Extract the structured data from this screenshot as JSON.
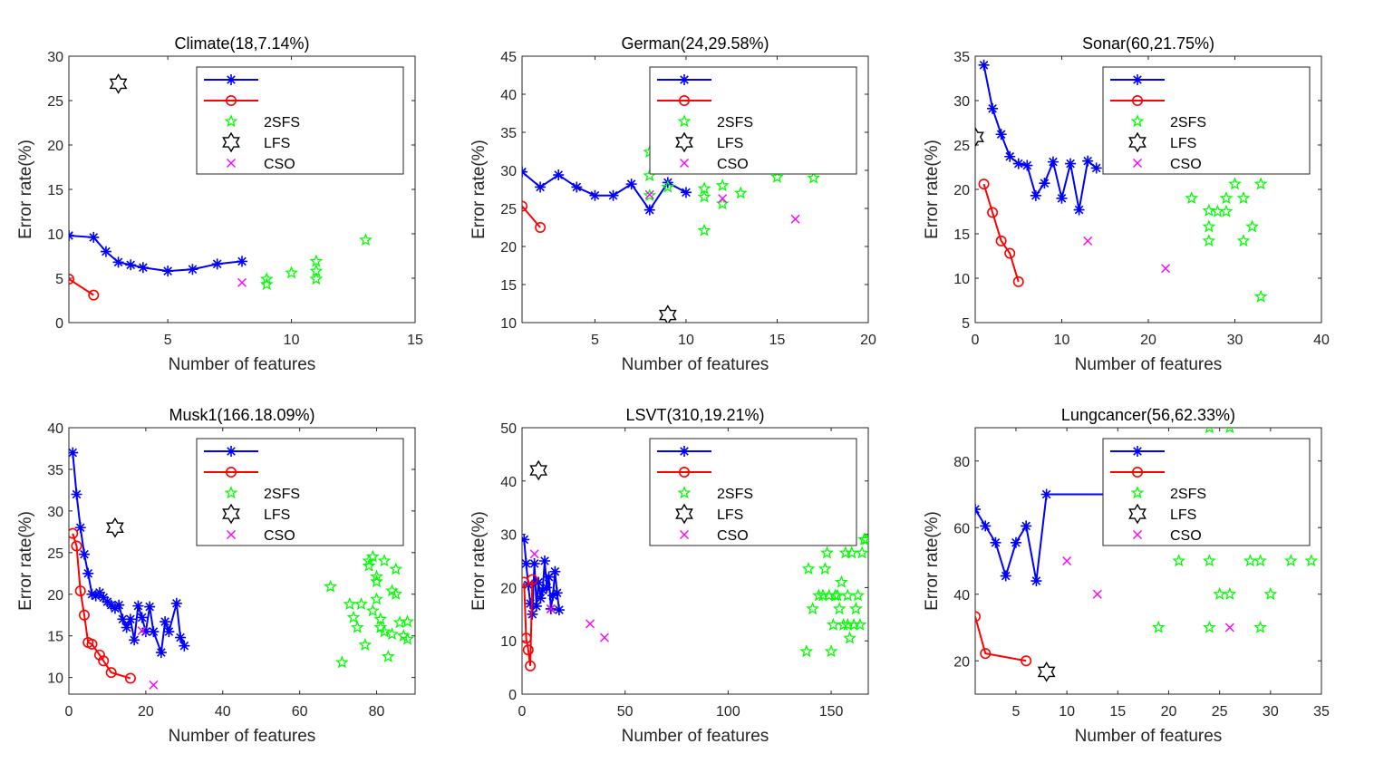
{
  "chart_data": [
    {
      "type": "scatter",
      "title": "Climate(18,7.14%)",
      "xlabel": "Number of features",
      "ylabel": "Error rate(%)",
      "xlim": [
        1,
        15
      ],
      "ylim": [
        0,
        30
      ],
      "xticks": [
        5,
        10,
        15
      ],
      "yticks": [
        0,
        5,
        10,
        15,
        20,
        25,
        30
      ],
      "grid": false,
      "legend_position": "top-right",
      "legend": [
        "",
        "",
        "2SFS",
        "LFS",
        "CSO"
      ],
      "series": [
        {
          "kind": "blue-line",
          "x": [
            1,
            2,
            2.5,
            3,
            3.5,
            4,
            5,
            6,
            7,
            8
          ],
          "y": [
            9.8,
            9.6,
            8.0,
            6.8,
            6.5,
            6.2,
            5.8,
            6.0,
            6.6,
            6.9
          ]
        },
        {
          "kind": "red-line",
          "x": [
            1,
            2
          ],
          "y": [
            4.9,
            3.1
          ]
        },
        {
          "kind": "green-star",
          "x": [
            9,
            9,
            10,
            11,
            11,
            11,
            13
          ],
          "y": [
            4.9,
            4.3,
            5.6,
            6.9,
            5.8,
            4.9,
            9.3
          ]
        },
        {
          "kind": "black-hexagram",
          "x": [
            3
          ],
          "y": [
            26.9
          ]
        },
        {
          "kind": "magenta-x",
          "x": [
            8
          ],
          "y": [
            4.5
          ]
        }
      ]
    },
    {
      "type": "scatter",
      "title": "German(24,29.58%)",
      "xlabel": "Number of features",
      "ylabel": "Error rate(%)",
      "xlim": [
        1,
        20
      ],
      "ylim": [
        10,
        45
      ],
      "xticks": [
        5,
        10,
        15,
        20
      ],
      "yticks": [
        10,
        15,
        20,
        25,
        30,
        35,
        40,
        45
      ],
      "grid": false,
      "legend_position": "top-right",
      "legend": [
        "",
        "",
        "2SFS",
        "LFS",
        "CSO"
      ],
      "series": [
        {
          "kind": "blue-line",
          "x": [
            1,
            2,
            3,
            4,
            5,
            6,
            7,
            8,
            9,
            10
          ],
          "y": [
            29.8,
            27.8,
            29.4,
            27.8,
            26.7,
            26.7,
            28.2,
            24.8,
            28.4,
            27.1
          ]
        },
        {
          "kind": "red-line",
          "x": [
            1,
            2
          ],
          "y": [
            25.3,
            22.5
          ]
        },
        {
          "kind": "green-star",
          "x": [
            8,
            8,
            8,
            9,
            11,
            11,
            11,
            12,
            12,
            13,
            15,
            17
          ],
          "y": [
            32.4,
            29.3,
            26.7,
            27.8,
            27.6,
            26.5,
            22.1,
            25.6,
            28.0,
            27.0,
            29.1,
            29.0
          ]
        },
        {
          "kind": "black-hexagram",
          "x": [
            9
          ],
          "y": [
            11.0
          ]
        },
        {
          "kind": "magenta-x",
          "x": [
            8,
            12,
            16
          ],
          "y": [
            26.8,
            26.3,
            23.6
          ]
        }
      ]
    },
    {
      "type": "scatter",
      "title": "Sonar(60,21.75%)",
      "xlabel": "Number of features",
      "ylabel": "Error rate(%)",
      "xlim": [
        0,
        40
      ],
      "ylim": [
        5,
        35
      ],
      "xticks": [
        0,
        10,
        20,
        30,
        40
      ],
      "yticks": [
        5,
        10,
        15,
        20,
        25,
        30,
        35
      ],
      "grid": false,
      "legend_position": "top-right",
      "legend": [
        "",
        "",
        "2SFS",
        "LFS",
        "CSO"
      ],
      "series": [
        {
          "kind": "blue-line",
          "x": [
            1,
            2,
            3,
            4,
            5,
            6,
            7,
            8,
            9,
            10,
            11,
            12,
            13,
            14
          ],
          "y": [
            34.0,
            29.1,
            26.2,
            23.7,
            22.9,
            22.7,
            19.3,
            20.7,
            23.1,
            19.0,
            22.9,
            17.7,
            23.2,
            22.4
          ]
        },
        {
          "kind": "red-line",
          "x": [
            1,
            2,
            3,
            4,
            5
          ],
          "y": [
            20.6,
            17.4,
            14.2,
            12.8,
            9.6
          ]
        },
        {
          "kind": "green-star",
          "x": [
            25,
            27,
            27,
            27,
            28,
            29,
            29,
            30,
            31,
            31,
            32,
            33,
            33
          ],
          "y": [
            19.0,
            17.6,
            15.8,
            14.2,
            17.5,
            17.5,
            19.0,
            20.6,
            19.0,
            14.2,
            15.8,
            20.6,
            7.9
          ]
        },
        {
          "kind": "black-hexagram",
          "x": [
            0
          ],
          "y": [
            25.9
          ]
        },
        {
          "kind": "magenta-x",
          "x": [
            13,
            22
          ],
          "y": [
            14.2,
            11.1
          ]
        }
      ]
    },
    {
      "type": "scatter",
      "title": "Musk1(166.18.09%)",
      "xlabel": "Number of features",
      "ylabel": "Error rate(%)",
      "xlim": [
        0,
        90
      ],
      "ylim": [
        8,
        40
      ],
      "xticks": [
        0,
        20,
        40,
        60,
        80
      ],
      "yticks": [
        10,
        15,
        20,
        25,
        30,
        35,
        40
      ],
      "grid": false,
      "legend_position": "top-right",
      "legend": [
        "",
        "",
        "2SFS",
        "LFS",
        "CSO"
      ],
      "series": [
        {
          "kind": "blue-line",
          "x": [
            1,
            2,
            3,
            4,
            5,
            6,
            7,
            8,
            9,
            10,
            11,
            12,
            13,
            14,
            15,
            16,
            17,
            18,
            19,
            20,
            21,
            22,
            24,
            25,
            26,
            28,
            29,
            30
          ],
          "y": [
            37.0,
            32.0,
            28.0,
            24.8,
            22.5,
            20.0,
            19.8,
            20.2,
            19.6,
            19.1,
            18.7,
            18.3,
            18.7,
            17.0,
            16.0,
            17.0,
            14.5,
            18.6,
            17.2,
            15.5,
            18.5,
            15.5,
            13.0,
            16.7,
            15.5,
            18.9,
            14.8,
            13.8
          ]
        },
        {
          "kind": "red-line",
          "x": [
            1,
            2,
            3,
            4,
            5,
            6,
            8,
            9,
            11,
            16
          ],
          "y": [
            27.3,
            25.8,
            20.4,
            17.5,
            14.2,
            14.0,
            12.7,
            12.0,
            10.6,
            9.9
          ]
        },
        {
          "kind": "green-star",
          "x": [
            68,
            71,
            73,
            74,
            75,
            76,
            77,
            78,
            78,
            79,
            79,
            80,
            80,
            80,
            81,
            81,
            82,
            82,
            83,
            84,
            84,
            85,
            85,
            86,
            87,
            88,
            88
          ],
          "y": [
            20.9,
            11.8,
            18.8,
            17.2,
            16.0,
            18.8,
            13.9,
            23.4,
            24.0,
            24.5,
            18.0,
            22.1,
            21.5,
            19.4,
            17.0,
            16.0,
            24.0,
            15.5,
            12.5,
            15.2,
            20.4,
            23.0,
            20.0,
            16.6,
            15.0,
            16.7,
            14.6
          ]
        },
        {
          "kind": "black-hexagram",
          "x": [
            12
          ],
          "y": [
            28.0
          ]
        },
        {
          "kind": "magenta-x",
          "x": [
            19,
            22
          ],
          "y": [
            15.6,
            9.1
          ]
        }
      ]
    },
    {
      "type": "scatter",
      "title": "LSVT(310,19.21%)",
      "xlabel": "Number of features",
      "ylabel": "Error rate(%)",
      "xlim": [
        0,
        168
      ],
      "ylim": [
        0,
        50
      ],
      "xticks": [
        0,
        50,
        100,
        150
      ],
      "yticks": [
        0,
        10,
        20,
        30,
        40,
        50
      ],
      "grid": false,
      "legend_position": "top-right",
      "legend": [
        "",
        "",
        "2SFS",
        "LFS",
        "CSO"
      ],
      "series": [
        {
          "kind": "blue-line",
          "x": [
            1,
            2,
            3,
            4,
            5,
            6,
            7,
            8,
            9,
            10,
            11,
            12,
            13,
            14,
            15,
            16,
            17,
            18
          ],
          "y": [
            29.0,
            24.5,
            20.5,
            17.0,
            15.0,
            24.5,
            16.5,
            21.0,
            18.0,
            19.5,
            25.0,
            20.0,
            22.0,
            16.0,
            18.5,
            23.0,
            19.0,
            15.8
          ]
        },
        {
          "kind": "red-line",
          "x": [
            1,
            2,
            3,
            4,
            5
          ],
          "y": [
            21.0,
            10.5,
            8.3,
            5.3,
            21.5
          ]
        },
        {
          "kind": "green-star",
          "x": [
            138,
            139,
            141,
            144,
            146,
            147,
            148,
            149,
            150,
            150,
            151,
            152,
            153,
            154,
            155,
            156,
            157,
            158,
            158,
            159,
            160,
            161,
            162,
            163,
            164,
            165,
            166,
            167
          ],
          "y": [
            8.0,
            23.5,
            16.0,
            18.5,
            18.5,
            23.5,
            26.5,
            18.5,
            8.0,
            29.0,
            13.0,
            18.5,
            18.5,
            16.0,
            21.0,
            13.0,
            26.5,
            18.5,
            13.0,
            10.5,
            26.5,
            13.0,
            16.0,
            18.5,
            13.0,
            26.5,
            29.0,
            29.0
          ]
        },
        {
          "kind": "black-hexagram",
          "x": [
            8
          ],
          "y": [
            42.0
          ]
        },
        {
          "kind": "magenta-x",
          "x": [
            6,
            14,
            33,
            40
          ],
          "y": [
            26.3,
            16.0,
            13.2,
            10.6
          ]
        }
      ]
    },
    {
      "type": "scatter",
      "title": "Lungcancer(56,62.33%)",
      "xlabel": "Number of features",
      "ylabel": "Error rate(%)",
      "xlim": [
        1,
        35
      ],
      "ylim": [
        10,
        90
      ],
      "xticks": [
        5,
        10,
        15,
        20,
        25,
        30,
        35
      ],
      "yticks": [
        20,
        40,
        60,
        80
      ],
      "grid": false,
      "legend_position": "top-right",
      "legend": [
        "",
        "",
        "2SFS",
        "LFS",
        "CSO"
      ],
      "series": [
        {
          "kind": "blue-line",
          "x": [
            1,
            2,
            3,
            4,
            5,
            6,
            7,
            8,
            14
          ],
          "y": [
            65.5,
            60.5,
            55.5,
            45.5,
            55.5,
            60.5,
            44.0,
            70.0,
            70.0
          ]
        },
        {
          "kind": "red-line",
          "x": [
            1,
            2,
            6
          ],
          "y": [
            33.3,
            22.2,
            20.0
          ]
        },
        {
          "kind": "green-star",
          "x": [
            19,
            21,
            24,
            24,
            24,
            25,
            26,
            26,
            28,
            29,
            29,
            30,
            32,
            34
          ],
          "y": [
            30.0,
            50.0,
            30.0,
            50.0,
            90.0,
            40.0,
            40.0,
            90.0,
            50.0,
            50.0,
            30.0,
            40.0,
            50.0,
            50.0
          ]
        },
        {
          "kind": "black-hexagram",
          "x": [
            8
          ],
          "y": [
            16.7
          ]
        },
        {
          "kind": "magenta-x",
          "x": [
            10,
            13,
            26
          ],
          "y": [
            50.0,
            40.0,
            30.0
          ]
        }
      ]
    }
  ],
  "colors": {
    "blue": "#0000ff",
    "red": "#ff0000",
    "green": "#00ff00",
    "black": "#000000",
    "magenta": "#ff00ff"
  }
}
